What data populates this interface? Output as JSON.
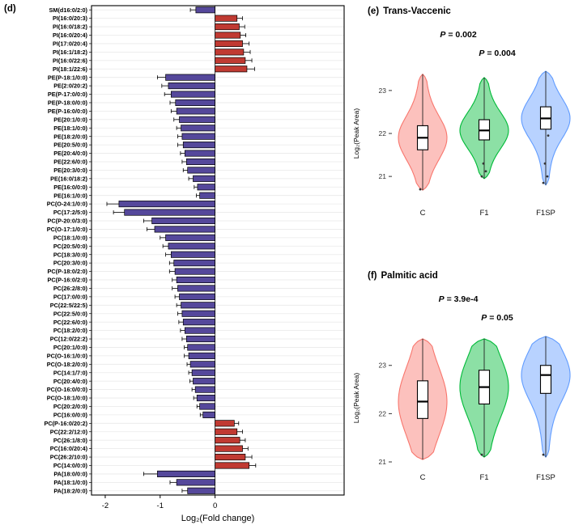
{
  "figure_labels": {
    "d": "(d)",
    "e": "(e)",
    "f": "(f)"
  },
  "chart_data": [
    {
      "id": "d",
      "type": "bar",
      "orientation": "horizontal",
      "xlabel": "Log₂(Fold change)",
      "xticks": [
        -2,
        -1,
        0
      ],
      "xlim": [
        -2.25,
        2.35
      ],
      "bar_colors": {
        "positive": "#C03A32",
        "negative": "#55489B"
      },
      "categories": [
        "SM(d16:0/2:0)",
        "PI(16:0/20:3)",
        "PI(16:0/18:2)",
        "PI(16:0/20:4)",
        "PI(17:0/20:4)",
        "PI(16:1/18:2)",
        "PI(16:0/22:6)",
        "PI(18:1/22:6)",
        "PE(P-18:1/0:0)",
        "PE(2:0/20:2)",
        "PE(P-17:0/0:0)",
        "PE(P-18:0/0:0)",
        "PE(P-16:0/0:0)",
        "PE(20:1/0:0)",
        "PE(18:1/0:0)",
        "PE(18:2/0:0)",
        "PE(20:5/0:0)",
        "PE(20:4/0:0)",
        "PE(22:6/0:0)",
        "PE(20:3/0:0)",
        "PE(16:0/18:2)",
        "PE(16:0/0:0)",
        "PE(16:1/0:0)",
        "PC(O-24:1/0:0)",
        "PC(17:2/5:0)",
        "PC(P-20:0/3:0)",
        "PC(O-17:1/0:0)",
        "PC(18:1/0:0)",
        "PC(20:5/0:0)",
        "PC(18:3/0:0)",
        "PC(20:3/0:0)",
        "PC(P-18:0/2:0)",
        "PC(P-16:0/2:0)",
        "PC(26:2/8:0)",
        "PC(17:0/0:0)",
        "PC(22:5/22:5)",
        "PC(22:5/0:0)",
        "PC(22:6/0:0)",
        "PC(18:2/0:0)",
        "PC(12:0/22:2)",
        "PC(20:1/0:0)",
        "PC(O-16:1/0:0)",
        "PC(O-18:2/0:0)",
        "PC(14:1/7:0)",
        "PC(20:4/0:0)",
        "PC(O-16:0/0:0)",
        "PC(O-18:1/0:0)",
        "PC(20:2/0:0)",
        "PC(16:0/0:0)",
        "PC(P-16:0/20:2)",
        "PC(22:2/12:0)",
        "PC(26:1/8:0)",
        "PC(16:0/20:4)",
        "PC(26:2/10:0)",
        "PC(14:0/0:0)",
        "PA(18:0/0:0)",
        "PA(18:1/0:0)",
        "PA(18:2/0:0)"
      ],
      "values": [
        -0.35,
        0.4,
        0.44,
        0.46,
        0.5,
        0.52,
        0.55,
        0.58,
        -0.9,
        -0.85,
        -0.8,
        -0.72,
        -0.7,
        -0.65,
        -0.62,
        -0.6,
        -0.58,
        -0.55,
        -0.52,
        -0.5,
        -0.4,
        -0.32,
        -0.28,
        -1.75,
        -1.65,
        -1.15,
        -1.1,
        -0.9,
        -0.85,
        -0.8,
        -0.75,
        -0.73,
        -0.7,
        -0.68,
        -0.65,
        -0.62,
        -0.6,
        -0.58,
        -0.55,
        -0.52,
        -0.5,
        -0.48,
        -0.45,
        -0.42,
        -0.4,
        -0.36,
        -0.33,
        -0.28,
        -0.22,
        0.35,
        0.4,
        0.45,
        0.5,
        0.55,
        0.62,
        -1.05,
        -0.7,
        -0.5
      ],
      "errors": [
        0.1,
        0.1,
        0.1,
        0.1,
        0.12,
        0.12,
        0.12,
        0.14,
        0.15,
        0.12,
        0.12,
        0.1,
        0.1,
        0.1,
        0.08,
        0.08,
        0.1,
        0.08,
        0.08,
        0.08,
        0.08,
        0.06,
        0.06,
        0.22,
        0.2,
        0.15,
        0.14,
        0.1,
        0.1,
        0.1,
        0.08,
        0.1,
        0.08,
        0.1,
        0.08,
        0.08,
        0.08,
        0.08,
        0.08,
        0.08,
        0.06,
        0.08,
        0.06,
        0.06,
        0.06,
        0.06,
        0.06,
        0.05,
        0.05,
        0.08,
        0.1,
        0.1,
        0.1,
        0.12,
        0.12,
        0.25,
        0.12,
        0.1
      ]
    },
    {
      "id": "e",
      "type": "violin",
      "title": "Trans-Vaccenic",
      "p_annotations": [
        {
          "text": "P = 0.002"
        },
        {
          "text": "P = 0.004"
        }
      ],
      "ylabel": "Log₂(Peak Area)",
      "yticks": [
        21,
        22,
        23
      ],
      "ylim": [
        20.4,
        23.6
      ],
      "categories": [
        "C",
        "F1",
        "F1SP"
      ],
      "colors": [
        "#F8766D",
        "#00BA38",
        "#619CFF"
      ],
      "series": [
        {
          "name": "C",
          "min": 20.68,
          "max": 23.38,
          "q1": 21.62,
          "median": 21.9,
          "q3": 22.18,
          "points": [
            20.7
          ]
        },
        {
          "name": "F1",
          "min": 20.95,
          "max": 23.3,
          "q1": 21.85,
          "median": 22.07,
          "q3": 22.32,
          "points": [
            21.0,
            21.12,
            21.3
          ]
        },
        {
          "name": "F1SP",
          "min": 20.8,
          "max": 23.45,
          "q1": 22.1,
          "median": 22.35,
          "q3": 22.62,
          "points": [
            20.85,
            21.0,
            21.3,
            21.95
          ]
        }
      ]
    },
    {
      "id": "f",
      "type": "violin",
      "title": "Palmitic acid",
      "p_annotations": [
        {
          "text": "P = 3.9e-4"
        },
        {
          "text": "P = 0.05"
        }
      ],
      "ylabel": "Log₂(Peak Area)",
      "yticks": [
        21,
        22,
        23
      ],
      "ylim": [
        20.9,
        23.75
      ],
      "categories": [
        "C",
        "F1",
        "F1SP"
      ],
      "colors": [
        "#F8766D",
        "#00BA38",
        "#619CFF"
      ],
      "series": [
        {
          "name": "C",
          "min": 21.05,
          "max": 23.55,
          "q1": 21.9,
          "median": 22.25,
          "q3": 22.68,
          "points": []
        },
        {
          "name": "F1",
          "min": 21.1,
          "max": 23.55,
          "q1": 22.2,
          "median": 22.55,
          "q3": 22.9,
          "points": [
            21.15
          ]
        },
        {
          "name": "F1SP",
          "min": 21.1,
          "max": 23.6,
          "q1": 22.42,
          "median": 22.8,
          "q3": 23.0,
          "points": [
            21.15
          ]
        }
      ]
    }
  ]
}
